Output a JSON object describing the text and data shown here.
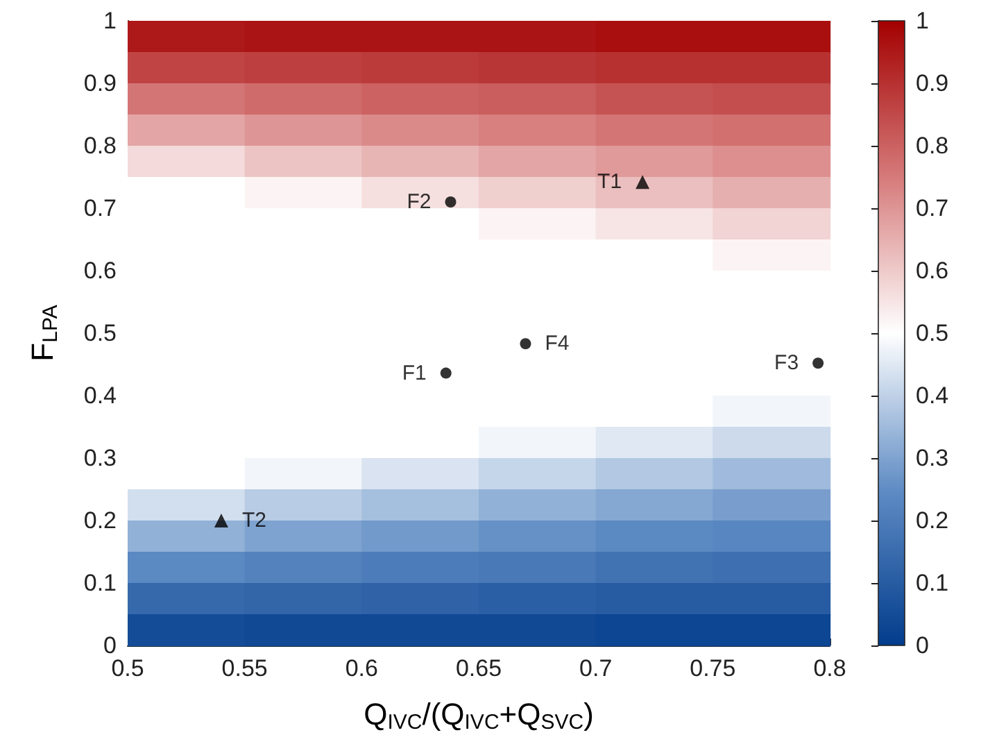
{
  "chart_data": {
    "type": "heatmap",
    "xlabel": "Q$_{IVC}$/(Q$_{IVC}$+Q$_{SVC}$)",
    "ylabel": "F$_{LPA}$",
    "xlim": [
      0.5,
      0.8
    ],
    "xticks": [
      0.5,
      0.55,
      0.6,
      0.65,
      0.7,
      0.75,
      0.8
    ],
    "ylim": [
      0,
      1
    ],
    "yticks": [
      0,
      0.1,
      0.2,
      0.3,
      0.4,
      0.5,
      0.6,
      0.7,
      0.8,
      0.9,
      1
    ],
    "clim": [
      0,
      1
    ],
    "cticks": [
      0,
      0.1,
      0.2,
      0.3,
      0.4,
      0.5,
      0.6,
      0.7,
      0.8,
      0.9,
      1
    ],
    "cells": [
      [
        0.95,
        0.96,
        0.96,
        0.96,
        0.97,
        0.97
      ],
      [
        0.86,
        0.87,
        0.88,
        0.89,
        0.9,
        0.9
      ],
      [
        0.76,
        0.78,
        0.8,
        0.81,
        0.83,
        0.84
      ],
      [
        0.67,
        0.7,
        0.72,
        0.74,
        0.76,
        0.77
      ],
      [
        0.57,
        0.61,
        0.64,
        0.67,
        0.69,
        0.71
      ],
      [
        0.5,
        0.52,
        0.56,
        0.59,
        0.62,
        0.65
      ],
      [
        0.5,
        0.5,
        0.5,
        0.52,
        0.55,
        0.58
      ],
      [
        0.5,
        0.5,
        0.5,
        0.5,
        0.5,
        0.52
      ],
      [
        0.5,
        0.5,
        0.5,
        0.5,
        0.5,
        0.5
      ],
      [
        0.5,
        0.5,
        0.5,
        0.5,
        0.5,
        0.5
      ],
      [
        0.5,
        0.5,
        0.5,
        0.5,
        0.5,
        0.5
      ],
      [
        0.5,
        0.5,
        0.5,
        0.5,
        0.5,
        0.5
      ],
      [
        0.5,
        0.5,
        0.5,
        0.5,
        0.5,
        0.48
      ],
      [
        0.5,
        0.5,
        0.5,
        0.48,
        0.45,
        0.42
      ],
      [
        0.5,
        0.48,
        0.44,
        0.41,
        0.38,
        0.35
      ],
      [
        0.43,
        0.39,
        0.36,
        0.33,
        0.31,
        0.29
      ],
      [
        0.33,
        0.3,
        0.28,
        0.26,
        0.24,
        0.23
      ],
      [
        0.24,
        0.22,
        0.2,
        0.19,
        0.17,
        0.16
      ],
      [
        0.14,
        0.13,
        0.12,
        0.11,
        0.1,
        0.1
      ],
      [
        0.05,
        0.04,
        0.04,
        0.04,
        0.03,
        0.03
      ]
    ],
    "series": [
      {
        "type": "scatter",
        "marker": "circle",
        "color": "#000000",
        "x": [
          0.636,
          0.638,
          0.795,
          0.67
        ],
        "values": [
          0.436,
          0.71,
          0.452,
          0.483
        ],
        "value_labels": [
          "F1",
          "F2",
          "F3",
          "F4"
        ]
      },
      {
        "type": "scatter",
        "marker": "triangle",
        "color": "#000000",
        "x": [
          0.72,
          0.54
        ],
        "values": [
          0.742,
          0.2
        ],
        "value_labels": [
          "T1",
          "T2"
        ]
      }
    ]
  }
}
